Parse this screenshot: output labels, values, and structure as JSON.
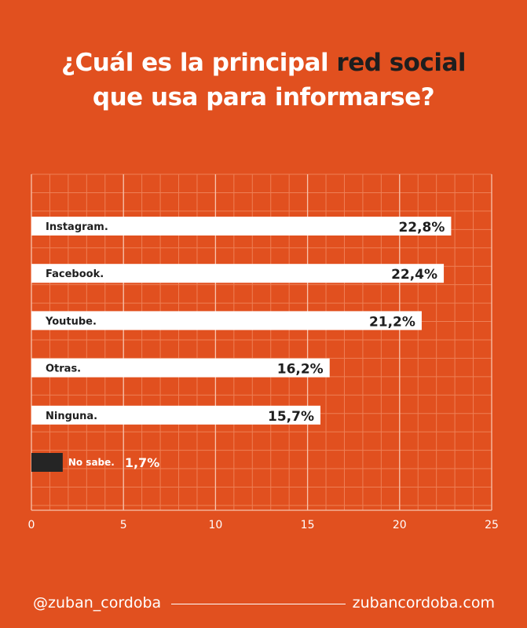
{
  "title": {
    "line1_pre": "¿Cuál es la principal ",
    "line1_highlight": "red social",
    "line2": "que usa para informarse?"
  },
  "chart_data": {
    "type": "bar",
    "orientation": "horizontal",
    "title": "¿Cuál es la principal red social que usa para informarse?",
    "categories": [
      "Instagram.",
      "Facebook.",
      "Youtube.",
      "Otras.",
      "Ninguna.",
      "No sabe."
    ],
    "values": [
      22.8,
      22.4,
      21.2,
      16.2,
      15.7,
      1.7
    ],
    "value_labels": [
      "22,8%",
      "22,4%",
      "21,2%",
      "16,2%",
      "15,7%",
      "1,7%"
    ],
    "xlim": [
      0,
      25
    ],
    "xticks": [
      0,
      5,
      10,
      15,
      20,
      25
    ],
    "grid": true,
    "colors": {
      "background": "#e1501f",
      "bar": "#ffffff",
      "bar_small": "#252525",
      "grid_minor": "#ee7f55",
      "grid_major": "#f7c2ac",
      "text_dark": "#1e1e1e",
      "text_light": "#ffffff"
    }
  },
  "footer": {
    "handle": "@zuban_cordoba",
    "website": "zubancordoba.com"
  }
}
